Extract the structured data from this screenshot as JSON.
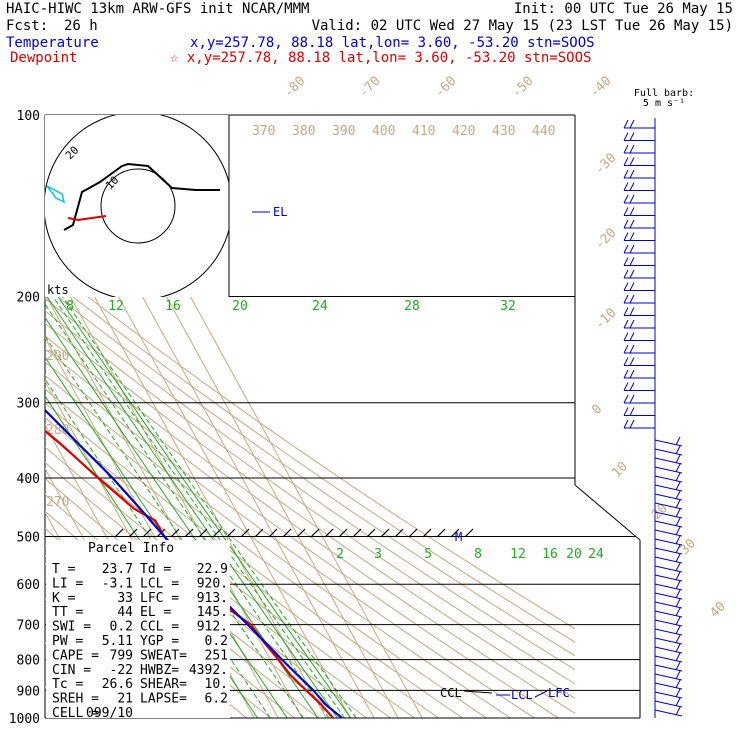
{
  "header": {
    "line1_left": "HAIC-HIWC 13km ARW-GFS init   NCAR/MMM",
    "line1_right": "Init: 00 UTC Tue 26 May 15",
    "fcst_label": "Fcst:",
    "fcst_value": "26 h",
    "valid": "Valid: 02 UTC Wed 27 May 15 (23 LST Tue 26 May 15)",
    "temp_label": "Temperature",
    "temp_info": "x,y=257.78, 88.18   lat,lon=  3.60, -53.20  stn=SOOS",
    "dew_label": "Dewpoint",
    "dew_info": "☆ x,y=257.78, 88.18   lat,lon=  3.60, -53.20  stn=SOOS",
    "barb_label_1": "Full barb:",
    "barb_label_2": "5 m s⁻¹"
  },
  "colors": {
    "temperature": "#0000cc",
    "dewpoint": "#dd0000",
    "isotherm": "#c8a882",
    "mixing_ratio": "#22aa22",
    "isobar": "#000000"
  },
  "chart_data": {
    "type": "skew-t",
    "pressure_levels": [
      "100",
      "200",
      "300",
      "400",
      "500",
      "600",
      "700",
      "800",
      "900",
      "1000"
    ],
    "isotherm_labels": [
      "-80",
      "-70",
      "-60",
      "-50",
      "-40",
      "-30",
      "-20",
      "-10",
      "0",
      "10",
      "20",
      "30",
      "40"
    ],
    "theta_labels_upper": [
      "370",
      "380",
      "390",
      "400",
      "410",
      "420",
      "430",
      "440"
    ],
    "theta_labels_left": [
      "290",
      "280",
      "270"
    ],
    "mixing_labels_upper": [
      "8",
      "12",
      "16",
      "20",
      "24",
      "28",
      "32"
    ],
    "mixing_labels_lower": [
      "2",
      "3",
      "5",
      "8",
      "12",
      "16",
      "20",
      "24"
    ],
    "temperature_profile": [
      {
        "p": 1000,
        "t": 26.6
      },
      {
        "p": 950,
        "t": 22.9
      },
      {
        "p": 913,
        "t": 21.5
      },
      {
        "p": 900,
        "t": 21.0
      },
      {
        "p": 850,
        "t": 18.0
      },
      {
        "p": 800,
        "t": 15.0
      },
      {
        "p": 750,
        "t": 12.0
      },
      {
        "p": 700,
        "t": 8.7
      },
      {
        "p": 650,
        "t": 5.0
      },
      {
        "p": 600,
        "t": 1.5
      },
      {
        "p": 550,
        "t": -2.0
      },
      {
        "p": 500,
        "t": -5.8
      },
      {
        "p": 450,
        "t": -9.5
      },
      {
        "p": 400,
        "t": -14.0
      },
      {
        "p": 350,
        "t": -20.5
      },
      {
        "p": 300,
        "t": -28.0
      },
      {
        "p": 250,
        "t": -38.0
      },
      {
        "p": 200,
        "t": -50.0
      },
      {
        "p": 175,
        "t": -57.0
      },
      {
        "p": 150,
        "t": -65.0
      },
      {
        "p": 125,
        "t": -74.0
      },
      {
        "p": 100,
        "t": -80.0
      }
    ],
    "dewpoint_profile": [
      {
        "p": 1000,
        "t": 22.9
      },
      {
        "p": 950,
        "t": 21.0
      },
      {
        "p": 900,
        "t": 18.0
      },
      {
        "p": 850,
        "t": 15.0
      },
      {
        "p": 800,
        "t": 13.5
      },
      {
        "p": 750,
        "t": 11.5
      },
      {
        "p": 700,
        "t": 10.0
      },
      {
        "p": 650,
        "t": 3.0
      },
      {
        "p": 600,
        "t": -4.0
      },
      {
        "p": 550,
        "t": -6.5
      },
      {
        "p": 520,
        "t": -5.0
      },
      {
        "p": 500,
        "t": -5.8
      },
      {
        "p": 470,
        "t": -6.0
      },
      {
        "p": 450,
        "t": -12.0
      },
      {
        "p": 400,
        "t": -20.0
      },
      {
        "p": 350,
        "t": -28.0
      },
      {
        "p": 300,
        "t": -39.0
      },
      {
        "p": 270,
        "t": -43.0
      },
      {
        "p": 230,
        "t": -49.0
      },
      {
        "p": 200,
        "t": -58.0
      },
      {
        "p": 175,
        "t": -68.0
      },
      {
        "p": 150,
        "t": -75.0
      },
      {
        "p": 125,
        "t": -77.0
      },
      {
        "p": 100,
        "t": -74.0
      }
    ],
    "level_markers": [
      {
        "label": "EL",
        "p": 145
      },
      {
        "label": "M",
        "p": 500
      },
      {
        "label": "CCL",
        "p": 912
      },
      {
        "label": "LCL",
        "p": 920
      },
      {
        "label": "LFC",
        "p": 913
      }
    ],
    "hodograph_labels": [
      "kts",
      "10",
      "20"
    ],
    "wind_barbs_on": true
  },
  "parcel_info": {
    "title": "Parcel Info",
    "rows": [
      {
        "k1": "T    =",
        "v1": "23.7",
        "k2": "Td  =",
        "v2": "22.9"
      },
      {
        "k1": "LI   =",
        "v1": "-3.1",
        "k2": "LCL =",
        "v2": "920."
      },
      {
        "k1": "K    =",
        "v1": "33",
        "k2": "LFC =",
        "v2": "913."
      },
      {
        "k1": "TT   =",
        "v1": "44",
        "k2": "EL  =",
        "v2": "145."
      },
      {
        "k1": "SWI  =",
        "v1": "0.2",
        "k2": "CCL =",
        "v2": "912."
      },
      {
        "k1": "PW   =",
        "v1": "5.11",
        "k2": "YGP =",
        "v2": "0.2"
      },
      {
        "k1": "CAPE =",
        "v1": "799",
        "k2": "SWEAT=",
        "v2": "251"
      },
      {
        "k1": "CIN  =",
        "v1": "-22",
        "k2": "HWBZ=",
        "v2": "4392."
      },
      {
        "k1": "Tc   =",
        "v1": "26.6",
        "k2": "SHEAR=",
        "v2": "10."
      },
      {
        "k1": "SREH =",
        "v1": "21",
        "k2": "LAPSE=",
        "v2": "6.2"
      },
      {
        "k1": "CELL =",
        "v1": "099/10",
        "k2": "",
        "v2": ""
      }
    ]
  }
}
